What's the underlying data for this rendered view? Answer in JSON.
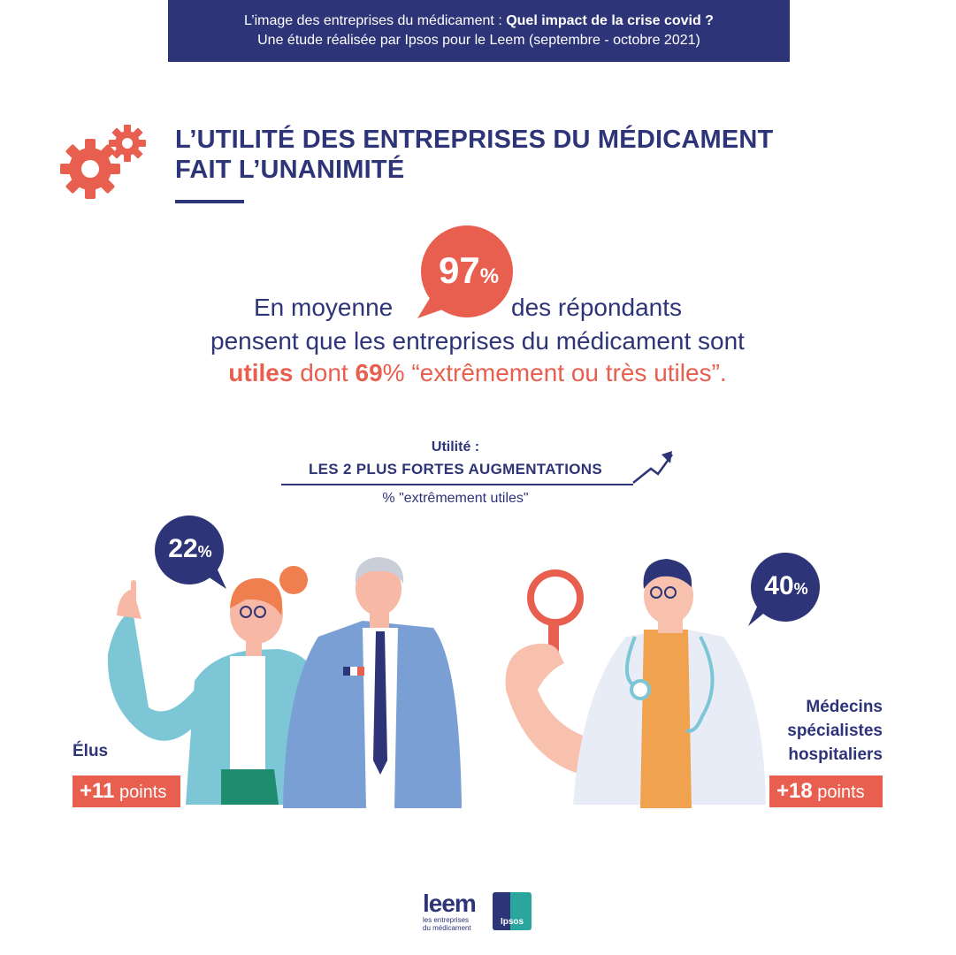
{
  "banner": {
    "line1_prefix": "L’image des entreprises du médicament : ",
    "line1_bold": "Quel impact de la crise covid ?",
    "line2": "Une étude réalisée par Ipsos pour le Leem (septembre - octobre 2021)"
  },
  "title": {
    "line1": "L’UTILITÉ DES ENTREPRISES DU MÉDICAMENT",
    "line2": "FAIT L’UNANIMITÉ"
  },
  "main_stat": {
    "value": "97",
    "unit": "%",
    "before": "En moyenne",
    "after": "des répondants",
    "line2": "pensent que les entreprises du médicament sont",
    "line3_bold": "utiles",
    "line3_mid": " dont ",
    "line3_value": "69",
    "line3_end": "% “extrêmement ou très utiles”."
  },
  "utility": {
    "label": "Utilité :",
    "heading": "LES 2 PLUS FORTES AUGMENTATIONS",
    "subheading": "% \"extrêmement utiles\""
  },
  "groups": [
    {
      "name": "Élus",
      "value": "22",
      "unit": "%",
      "delta_value": "+11",
      "delta_unit": "points"
    },
    {
      "name_lines": [
        "Médecins",
        "spécialistes",
        "hospitaliers"
      ],
      "value": "40",
      "unit": "%",
      "delta_value": "+18",
      "delta_unit": "points"
    }
  ],
  "logos": {
    "leem": "leem",
    "leem_tag1": "les entreprises",
    "leem_tag2": "du médicament",
    "ipsos": "Ipsos"
  },
  "colors": {
    "navy": "#2d3477",
    "coral": "#e85f4f",
    "teal": "#2aa69f"
  }
}
